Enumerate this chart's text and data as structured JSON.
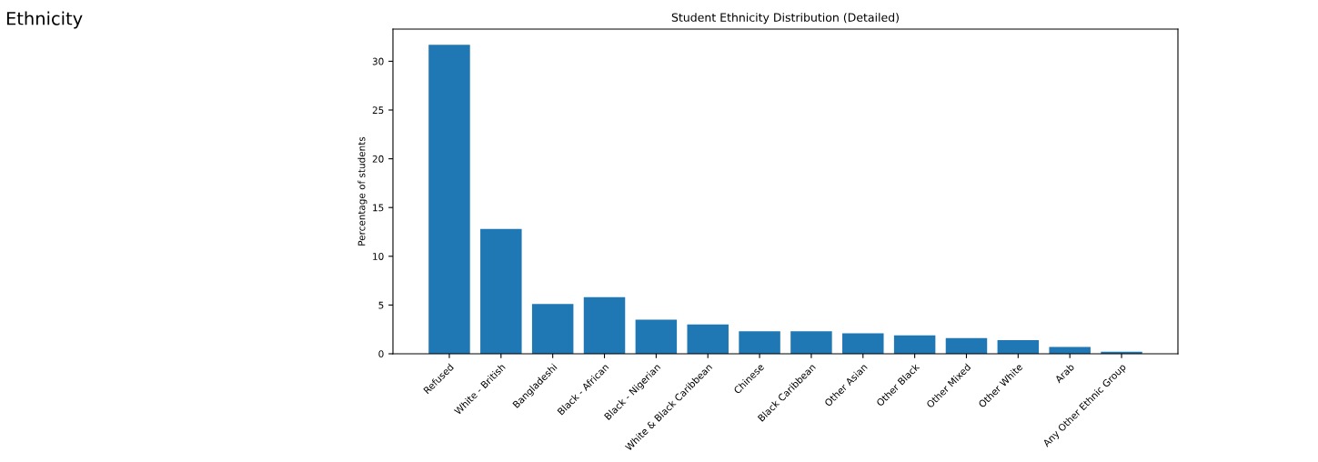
{
  "chart_data": {
    "type": "bar",
    "title": "Student Ethnicity Distribution (Detailed)",
    "ylabel": "Percentage of students",
    "annotations": [
      "Ethnicity"
    ],
    "categories": [
      "Refused",
      "White - British",
      "Bangladeshi",
      "Black - African",
      "Black - Nigerian",
      "White & Black Caribbean",
      "Chinese",
      "Black Caribbean",
      "Other Asian",
      "Other Black",
      "Other Mixed",
      "Other White",
      "Arab",
      "Any Other Ethnic Group"
    ],
    "values": [
      31.7,
      12.8,
      5.1,
      5.8,
      3.5,
      3.0,
      2.3,
      2.3,
      2.1,
      1.9,
      1.6,
      1.4,
      0.7,
      0.2
    ],
    "color": "#1f77b4",
    "ylim": [
      0,
      33.3
    ],
    "yticks": [
      0,
      5,
      10,
      15,
      20,
      25,
      30
    ],
    "grid": false
  }
}
